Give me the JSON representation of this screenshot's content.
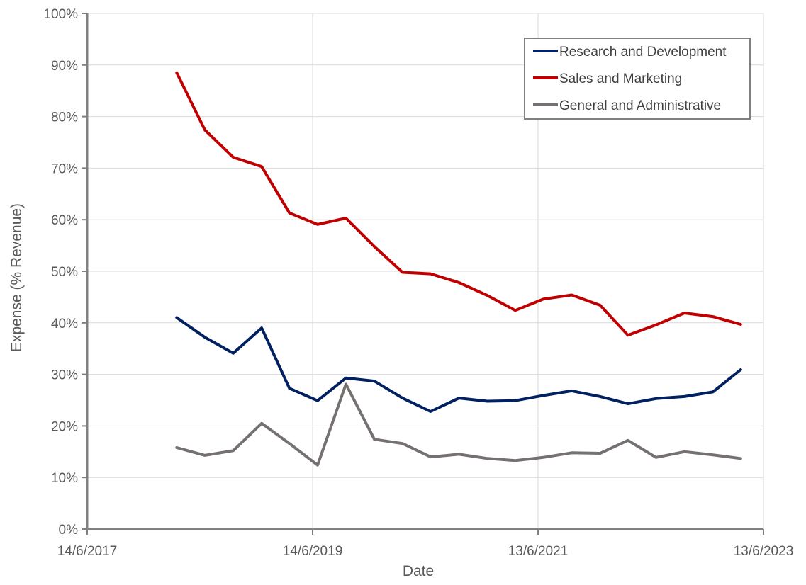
{
  "chart_data": {
    "type": "line",
    "xlabel": "Date",
    "ylabel": "Expense (% Revenue)",
    "x_ticks": [
      "14/6/2017",
      "14/6/2019",
      "13/6/2021",
      "13/6/2023"
    ],
    "y_ticks": [
      "0%",
      "10%",
      "20%",
      "30%",
      "40%",
      "50%",
      "60%",
      "70%",
      "80%",
      "90%",
      "100%"
    ],
    "xlim": [
      "2017-06-14",
      "2023-06-13"
    ],
    "ylim": [
      0,
      100
    ],
    "y_unit": "%",
    "grid": true,
    "legend_position": "top-right",
    "x": [
      "2018-03-31",
      "2018-06-30",
      "2018-09-30",
      "2018-12-31",
      "2019-03-31",
      "2019-06-30",
      "2019-09-30",
      "2019-12-31",
      "2020-03-31",
      "2020-06-30",
      "2020-09-30",
      "2020-12-31",
      "2021-03-31",
      "2021-06-30",
      "2021-09-30",
      "2021-12-31",
      "2022-03-31",
      "2022-06-30",
      "2022-09-30",
      "2022-12-31",
      "2023-03-31"
    ],
    "series": [
      {
        "name": "Research and Development",
        "color": "#002060",
        "values": [
          41.0,
          37.2,
          34.1,
          39.0,
          27.3,
          24.9,
          29.3,
          28.7,
          25.4,
          22.8,
          25.4,
          24.8,
          24.9,
          25.9,
          26.8,
          25.7,
          24.3,
          25.3,
          25.7,
          26.6,
          30.9
        ]
      },
      {
        "name": "Sales and Marketing",
        "color": "#C00000",
        "values": [
          88.5,
          77.4,
          72.1,
          70.3,
          61.3,
          59.1,
          60.3,
          54.8,
          49.8,
          49.5,
          47.8,
          45.3,
          42.4,
          44.6,
          45.4,
          43.4,
          37.6,
          39.6,
          41.9,
          41.2,
          39.7
        ]
      },
      {
        "name": "General and Administrative",
        "color": "#767171",
        "values": [
          15.8,
          14.3,
          15.2,
          20.5,
          16.6,
          12.4,
          28.1,
          17.4,
          16.6,
          14.0,
          14.5,
          13.7,
          13.3,
          13.9,
          14.8,
          14.7,
          17.2,
          13.9,
          15.0,
          14.4,
          13.7
        ]
      }
    ]
  }
}
